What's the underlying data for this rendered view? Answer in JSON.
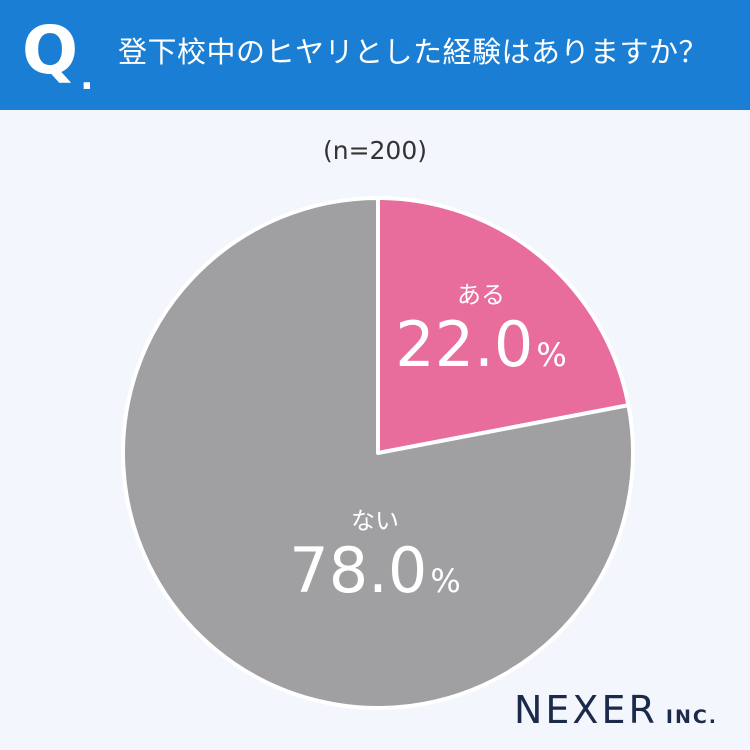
{
  "header": {
    "q_mark": "Q",
    "q_dot": ".",
    "question": "登下校中のヒヤリとした経験はありますか？"
  },
  "sample_size": "(n=200)",
  "chart_data": {
    "type": "pie",
    "title": "",
    "categories": [
      "ある",
      "ない"
    ],
    "values": [
      22.0,
      78.0
    ],
    "value_labels": [
      "22.0",
      "78.0"
    ],
    "unit": "%",
    "colors": [
      "#e86c9c",
      "#a0a0a2"
    ],
    "start_angle_deg": 0,
    "direction": "clockwise",
    "legend": "none"
  },
  "brand": {
    "name": "NEXER",
    "suffix": "INC.",
    "colors": {
      "header": "#1a7fd4",
      "background": "#f3f6fd",
      "text": "#1b2a4a"
    }
  }
}
